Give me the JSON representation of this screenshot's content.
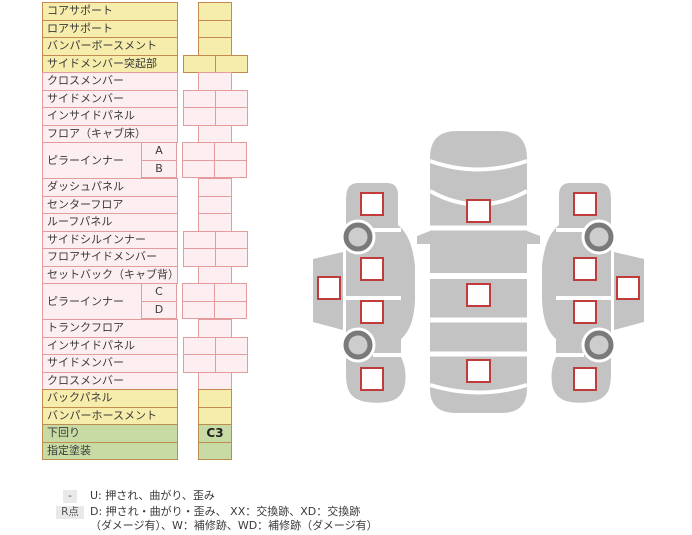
{
  "table": {
    "rows": [
      {
        "label": "コアサポート",
        "group": "yellow",
        "cell": "narrow"
      },
      {
        "label": "ロアサポート",
        "group": "yellow",
        "cell": "narrow"
      },
      {
        "label": "バンパーボースメント",
        "group": "yellow",
        "cell": "narrow"
      },
      {
        "label": "サイドメンバー突起部",
        "group": "yellow",
        "cell": "wide"
      },
      {
        "label": "クロスメンバー",
        "group": "pink",
        "cell": "narrow"
      },
      {
        "label": "サイドメンバー",
        "group": "pink",
        "cell": "wide"
      },
      {
        "label": "インサイドパネル",
        "group": "pink",
        "cell": "wide"
      },
      {
        "label": "フロア（キャブ床）",
        "group": "pink",
        "cell": "narrow"
      },
      {
        "label": "ピラーインナー",
        "sub": "A",
        "group": "pink",
        "cell": "wide"
      },
      {
        "sub": "B",
        "group": "pink",
        "cell": "wide"
      },
      {
        "label": "ダッシュパネル",
        "group": "pink",
        "cell": "narrow"
      },
      {
        "label": "センターフロア",
        "group": "pink",
        "cell": "narrow"
      },
      {
        "label": "ルーフパネル",
        "group": "pink",
        "cell": "narrow"
      },
      {
        "label": "サイドシルインナー",
        "group": "pink",
        "cell": "wide"
      },
      {
        "label": "フロアサイドメンバー",
        "group": "pink",
        "cell": "wide"
      },
      {
        "label": "セットバック（キャブ背）",
        "group": "pink",
        "cell": "narrow"
      },
      {
        "label": "ピラーインナー",
        "sub": "C",
        "group": "pink",
        "cell": "wide"
      },
      {
        "sub": "D",
        "group": "pink",
        "cell": "wide"
      },
      {
        "label": "トランクフロア",
        "group": "pink",
        "cell": "narrow"
      },
      {
        "label": "インサイドパネル",
        "group": "pink",
        "cell": "wide"
      },
      {
        "label": "サイドメンバー",
        "group": "pink",
        "cell": "wide"
      },
      {
        "label": "クロスメンバー",
        "group": "pink",
        "cell": "narrow"
      },
      {
        "label": "バックパネル",
        "group": "yellow",
        "cell": "narrow"
      },
      {
        "label": "バンパーホースメント",
        "group": "yellow",
        "cell": "narrow"
      },
      {
        "label": "下回り",
        "group": "green",
        "cell": "narrow",
        "value": "C3"
      },
      {
        "label": "指定塗装",
        "group": "green",
        "cell": "narrow"
      }
    ]
  },
  "legend": {
    "rows": [
      {
        "badge": "-",
        "text": "U: 押され、曲がり、歪み"
      },
      {
        "badge": "R点",
        "text": "D: 押され・曲がり・歪み、 XX：交換跡、XD：交換跡",
        "text2": "（ダメージ有）、W：補修跡、WD：補修跡（ダメージ有）"
      }
    ]
  },
  "diagram": {
    "views": [
      {
        "name": "left-side-view",
        "marker_count": 5,
        "wheel_count": 2
      },
      {
        "name": "top-view",
        "marker_count": 3,
        "wheel_count": 0
      },
      {
        "name": "right-side-view",
        "marker_count": 5,
        "wheel_count": 2
      }
    ]
  },
  "colors": {
    "group_yellow_bg": "#f6ecab",
    "group_yellow_border": "#c58a50",
    "group_pink_bg": "#fdeff1",
    "group_pink_border": "#e39b9b",
    "group_green_bg": "#c8dba4",
    "group_green_border": "#bd8e52",
    "marker_border": "#c13b3b",
    "car_body": "#c3c3c3",
    "wheel_ring": "#7a7a7a",
    "wheel_hub": "#cdcdcd",
    "legend_badge_bg": "#e9e9e9",
    "text": "#3a3a3a"
  }
}
